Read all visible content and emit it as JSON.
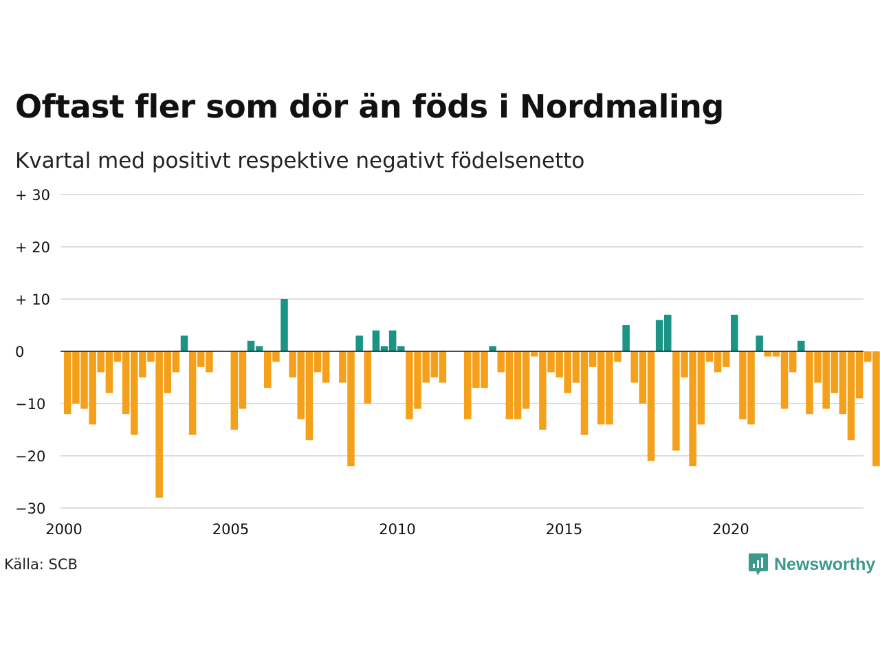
{
  "header": {
    "title": "Oftast fler som dör än föds i Nordmaling",
    "subtitle": "Kvartal med positivt respektive negativt födelsenetto"
  },
  "footer": {
    "source": "Källa: SCB",
    "brand": "Newsworthy"
  },
  "colors": {
    "positive": "#1a9485",
    "negative": "#f5a01a",
    "grid": "#dddddd",
    "zero_line": "#111111",
    "brand": "#3a9a8c"
  },
  "icons": {
    "brand_logo": "newsworthy-logo-icon"
  },
  "chart_data": {
    "type": "bar",
    "title": "Oftast fler som dör än föds i Nordmaling",
    "subtitle": "Kvartal med positivt respektive negativt födelsenetto",
    "xlabel": "",
    "ylabel": "",
    "ylim": [
      -30,
      30
    ],
    "yticks": [
      30,
      20,
      10,
      0,
      -10,
      -20,
      -30
    ],
    "ytick_labels": [
      "+ 30",
      "+ 20",
      "+ 10",
      "0",
      "−10",
      "−20",
      "−30"
    ],
    "xticks": [
      "2000",
      "2005",
      "2010",
      "2015",
      "2020"
    ],
    "grid": true,
    "start_year": 2000,
    "x_max_year": 2024,
    "quarters_per_year": 4,
    "values": [
      -12,
      -10,
      -11,
      -14,
      -4,
      -8,
      -2,
      -12,
      -16,
      -5,
      -2,
      -28,
      -8,
      -4,
      3,
      -16,
      -3,
      -4,
      0,
      0,
      -15,
      -11,
      2,
      1,
      -7,
      -2,
      10,
      -5,
      -13,
      -17,
      -4,
      -6,
      0,
      -6,
      -22,
      3,
      -10,
      4,
      1,
      4,
      1,
      -13,
      -11,
      -6,
      -5,
      -6,
      0,
      0,
      -13,
      -7,
      -7,
      1,
      -4,
      -13,
      -13,
      -11,
      -1,
      -15,
      -4,
      -5,
      -8,
      -6,
      -16,
      -3,
      -14,
      -14,
      -2,
      5,
      -6,
      -10,
      -21,
      6,
      7,
      -19,
      -5,
      -22,
      -14,
      -2,
      -4,
      -3,
      7,
      -13,
      -14,
      3,
      -1,
      -1,
      -11,
      -4,
      2,
      -12,
      -6,
      -11,
      -8,
      -12,
      -17,
      -9,
      -2,
      -22
    ]
  }
}
